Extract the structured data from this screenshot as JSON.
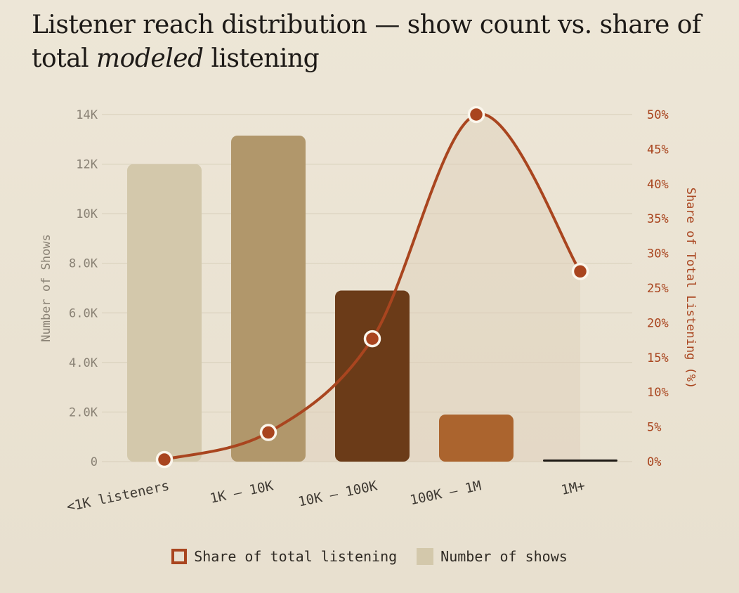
{
  "title_parts": {
    "before": "Listener reach distribution — show count vs. share of total ",
    "emphasis": "modeled",
    "after": " listening"
  },
  "chart_data": {
    "type": "bar",
    "title": "Listener reach distribution — show count vs. share of total modeled listening",
    "categories": [
      "<1K listeners",
      "1K – 10K",
      "10K – 100K",
      "100K – 1M",
      "1M+"
    ],
    "series": [
      {
        "name": "Number of shows",
        "type": "bar",
        "axis": "left",
        "values": [
          12000,
          13150,
          6900,
          1900,
          80
        ],
        "colors": [
          "#d3c8ab",
          "#b1976b",
          "#6b3b18",
          "#ab642e",
          "#1f1b17"
        ]
      },
      {
        "name": "Share of total listening",
        "type": "line",
        "axis": "right",
        "values": [
          0.3,
          4.2,
          17.7,
          50.0,
          27.4
        ],
        "color": "#a9451f"
      }
    ],
    "ylabel": "Number of Shows",
    "ylabel_right": "Share of Total Listening (%)",
    "ylim": [
      0,
      14000
    ],
    "ylim_right": [
      0,
      50
    ],
    "yticks": [
      "0",
      "2.0K",
      "4.0K",
      "6.0K",
      "8.0K",
      "10K",
      "12K",
      "14K"
    ],
    "yticks_right": [
      "0%",
      "5%",
      "10%",
      "15%",
      "20%",
      "25%",
      "30%",
      "35%",
      "40%",
      "45%",
      "50%"
    ],
    "grid": true,
    "legend_position": "bottom-center"
  },
  "legend": {
    "line_label": "Share of total listening",
    "bar_label": "Number of shows"
  }
}
